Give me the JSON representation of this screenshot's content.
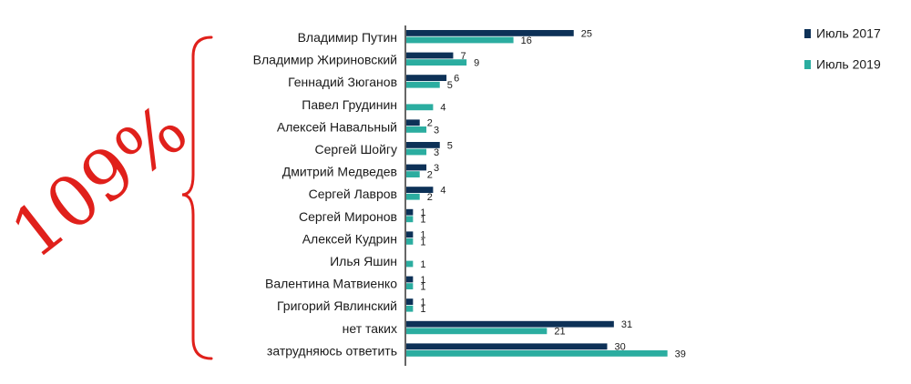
{
  "chart_data": {
    "type": "bar",
    "orientation": "horizontal",
    "categories": [
      "Владимир Путин",
      "Владимир Жириновский",
      "Геннадий Зюганов",
      "Павел Грудинин",
      "Алексей Навальный",
      "Сергей Шойгу",
      "Дмитрий Медведев",
      "Сергей Лавров",
      "Сергей Миронов",
      "Алексей Кудрин",
      "Илья Яшин",
      "Валентина Матвиенко",
      "Григорий Явлинский",
      "нет таких",
      "затрудняюсь ответить"
    ],
    "series": [
      {
        "name": "Июль 2017",
        "color": "#0d3157",
        "values": [
          25,
          7,
          6,
          null,
          2,
          5,
          3,
          4,
          1,
          1,
          null,
          1,
          1,
          31,
          30
        ]
      },
      {
        "name": "Июль 2019",
        "color": "#2bada0",
        "values": [
          16,
          9,
          5,
          4,
          3,
          3,
          2,
          2,
          1,
          1,
          1,
          1,
          1,
          21,
          39
        ]
      }
    ],
    "legend_position": "top-right",
    "xlim": [
      0,
      39
    ],
    "grid": false
  },
  "annotation": {
    "text": "109%",
    "color": "#e0201b",
    "bracket_color": "#e0201b"
  }
}
